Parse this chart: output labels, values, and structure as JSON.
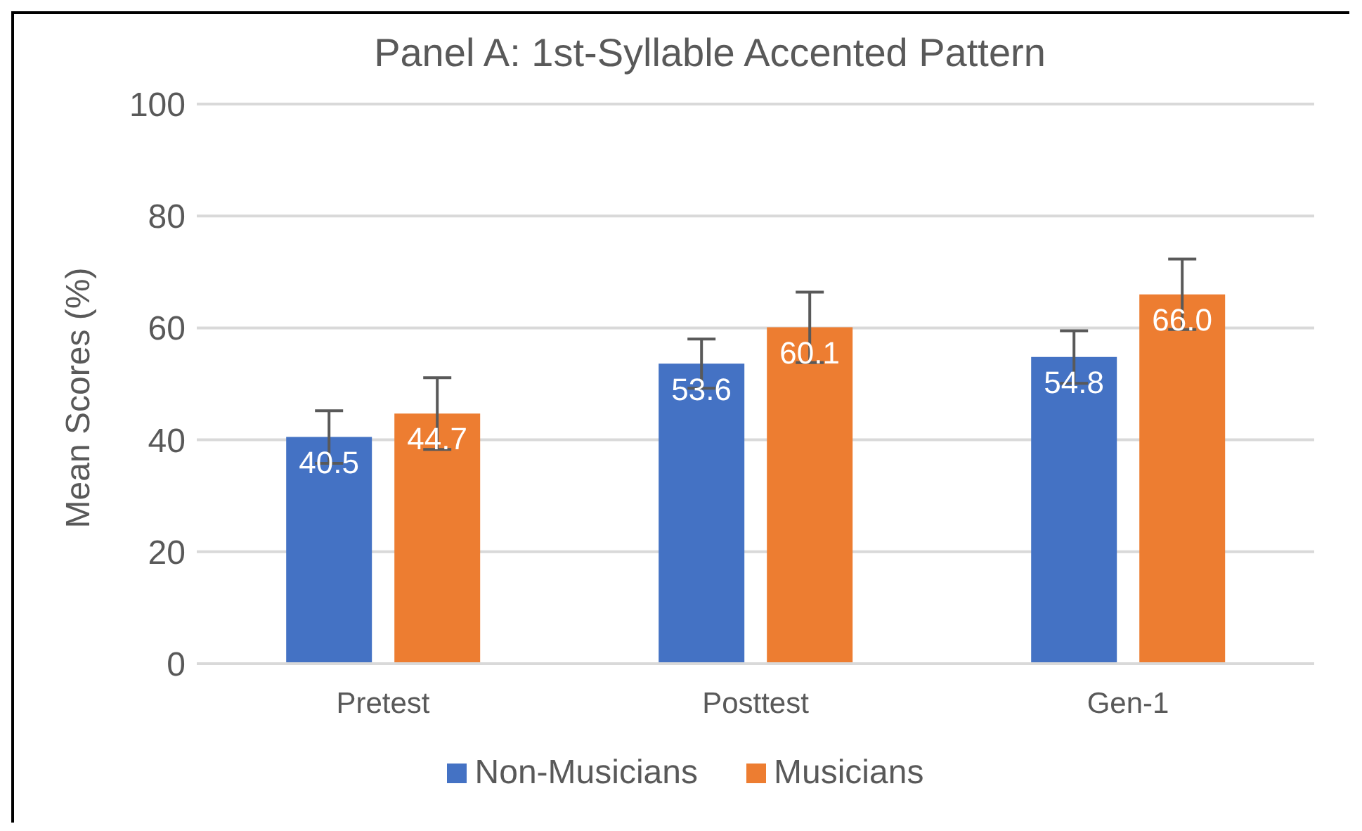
{
  "chart_data": {
    "type": "bar",
    "title": "Panel A: 1st-Syllable Accented Pattern",
    "ylabel": "Mean Scores (%)",
    "categories": [
      "Pretest",
      "Posttest",
      "Gen-1"
    ],
    "series": [
      {
        "name": "Non-Musicians",
        "color": "#4472c4",
        "values": [
          40.5,
          53.6,
          54.8
        ],
        "errors": [
          4.7,
          4.4,
          4.7
        ],
        "value_labels": [
          "40.5",
          "53.6",
          "54.8"
        ]
      },
      {
        "name": "Musicians",
        "color": "#ed7d31",
        "values": [
          44.7,
          60.1,
          66.0
        ],
        "errors": [
          6.4,
          6.3,
          6.3
        ],
        "value_labels": [
          "44.7",
          "60.1",
          "66.0"
        ]
      }
    ],
    "ylim": [
      0,
      100
    ],
    "yticks": [
      0,
      20,
      40,
      60,
      80,
      100
    ],
    "grid": "y",
    "legend": "bottom"
  }
}
